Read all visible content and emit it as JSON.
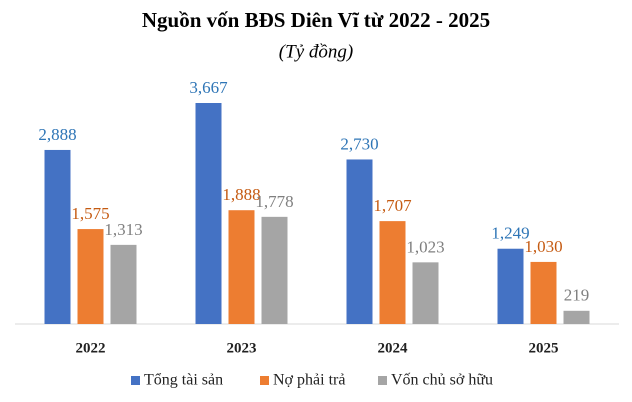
{
  "chart_data": {
    "type": "bar",
    "title": "Nguồn vốn BĐS Diên Vĩ từ 2022 - 2025",
    "subtitle": "(Tỷ đồng)",
    "categories": [
      "2022",
      "2023",
      "2024",
      "2025"
    ],
    "series": [
      {
        "name": "Tổng tài sản",
        "color": "#4472c4",
        "label_color": "#2e75b6",
        "values": [
          2888,
          3667,
          2730,
          1249
        ],
        "value_labels": [
          "2,888",
          "3,667",
          "2,730",
          "1,249"
        ]
      },
      {
        "name": "Nợ phải trả",
        "color": "#ed7d31",
        "label_color": "#c55a11",
        "values": [
          1575,
          1888,
          1707,
          1030
        ],
        "value_labels": [
          "1,575",
          "1,888",
          "1,707",
          "1,030"
        ]
      },
      {
        "name": "Vốn chủ sở hữu",
        "color": "#a5a5a5",
        "label_color": "#7f7f7f",
        "values": [
          1313,
          1778,
          1023,
          219
        ],
        "value_labels": [
          "1,313",
          "1,778",
          "1,023",
          "219"
        ]
      }
    ],
    "legend": "bottom"
  }
}
